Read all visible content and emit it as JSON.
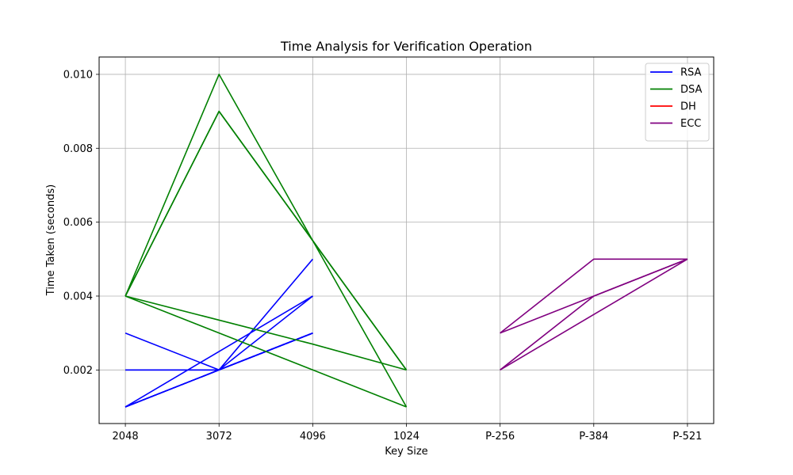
{
  "chart_data": {
    "type": "line",
    "title": "Time Analysis for Verification Operation",
    "xlabel": "Key Size",
    "ylabel": "Time Taken (seconds)",
    "categories": [
      "2048",
      "3072",
      "4096",
      "1024",
      "P-256",
      "P-384",
      "P-521"
    ],
    "y_ticks": [
      "0.002",
      "0.004",
      "0.006",
      "0.008",
      "0.010"
    ],
    "ylim": [
      0.00055,
      0.01047
    ],
    "grid": true,
    "legend_position": "top-right",
    "series": [
      {
        "name": "RSA",
        "color": "#0000ff",
        "runs": [
          {
            "x": [
              "2048",
              "3072",
              "4096"
            ],
            "y": [
              0.003,
              0.002,
              0.003
            ]
          },
          {
            "x": [
              "2048",
              "3072",
              "4096"
            ],
            "y": [
              0.002,
              0.002,
              0.003
            ]
          },
          {
            "x": [
              "2048",
              "3072",
              "4096"
            ],
            "y": [
              0.001,
              0.002,
              0.005
            ]
          },
          {
            "x": [
              "2048",
              "3072",
              "4096"
            ],
            "y": [
              0.001,
              0.002,
              0.003
            ]
          },
          {
            "x": [
              "2048",
              "3072",
              "4096"
            ],
            "y": [
              0.002,
              0.002,
              0.004
            ]
          },
          {
            "x": [
              "2048",
              "3072",
              "4096"
            ],
            "y": [
              0.001,
              0.002,
              0.003
            ]
          },
          {
            "x": [
              "2048",
              "3072",
              "4096"
            ],
            "y": [
              0.001,
              0.002,
              0.003
            ]
          },
          {
            "x": [
              "2048",
              "4096"
            ],
            "y": [
              0.001,
              0.004
            ]
          }
        ]
      },
      {
        "name": "DSA",
        "color": "#008000",
        "runs": [
          {
            "x": [
              "2048",
              "3072",
              "4096",
              "1024"
            ],
            "y": [
              0.004,
              0.009,
              0.0055,
              0.002
            ]
          },
          {
            "x": [
              "2048",
              "3072",
              "4096",
              "1024"
            ],
            "y": [
              0.004,
              0.01,
              0.0055,
              0.001
            ]
          },
          {
            "x": [
              "2048",
              "3072",
              "4096",
              "1024"
            ],
            "y": [
              0.004,
              0.009,
              0.0055,
              0.002
            ]
          },
          {
            "x": [
              "2048",
              "4096",
              "1024"
            ],
            "y": [
              0.004,
              0.002,
              0.001
            ]
          },
          {
            "x": [
              "2048",
              "4096",
              "1024"
            ],
            "y": [
              0.004,
              0.0027,
              0.002
            ]
          }
        ]
      },
      {
        "name": "DH",
        "color": "#ff0000",
        "runs": []
      },
      {
        "name": "ECC",
        "color": "#800080",
        "runs": [
          {
            "x": [
              "P-256",
              "P-384",
              "P-521"
            ],
            "y": [
              0.003,
              0.005,
              0.005
            ]
          },
          {
            "x": [
              "P-256",
              "P-384",
              "P-521"
            ],
            "y": [
              0.003,
              0.004,
              0.005
            ]
          },
          {
            "x": [
              "P-256",
              "P-384",
              "P-521"
            ],
            "y": [
              0.002,
              0.004,
              0.005
            ]
          },
          {
            "x": [
              "P-256",
              "P-521"
            ],
            "y": [
              0.002,
              0.005
            ]
          }
        ]
      }
    ]
  }
}
